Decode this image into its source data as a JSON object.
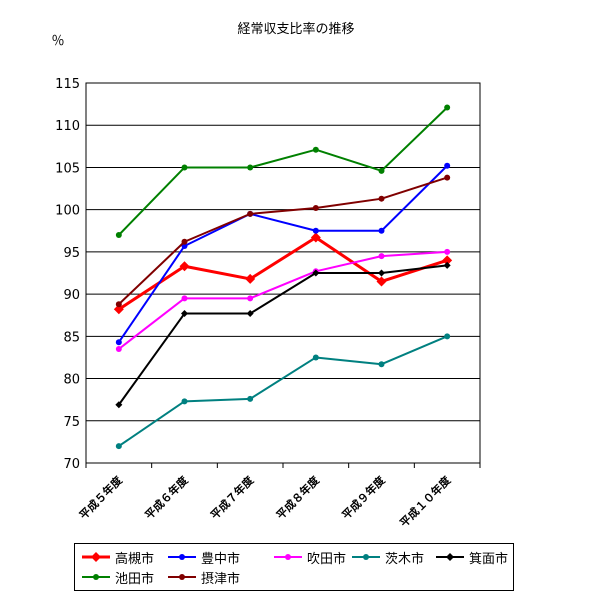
{
  "chart_data": {
    "type": "line",
    "title": "経常収支比率の推移",
    "ylabel": "％",
    "xlabel": "",
    "categories": [
      "平成５年度",
      "平成６年度",
      "平成７年度",
      "平成８年度",
      "平成９年度",
      "平成１０年度"
    ],
    "ylim": [
      70,
      115
    ],
    "yticks": [
      70,
      75,
      80,
      85,
      90,
      95,
      100,
      105,
      110,
      115
    ],
    "grid": true,
    "legend_position": "bottom",
    "series": [
      {
        "name": "高槻市",
        "color": "#ff0000",
        "marker": "diamond",
        "values": [
          88.2,
          93.3,
          91.8,
          96.7,
          91.5,
          94.0
        ]
      },
      {
        "name": "豊中市",
        "color": "#0000ff",
        "marker": "circle",
        "values": [
          84.3,
          95.7,
          99.5,
          97.5,
          97.5,
          105.2
        ]
      },
      {
        "name": "吹田市",
        "color": "#ff00ff",
        "marker": "circle",
        "values": [
          83.5,
          89.5,
          89.5,
          92.7,
          94.5,
          95.0
        ]
      },
      {
        "name": "茨木市",
        "color": "#008080",
        "marker": "circle",
        "values": [
          72.0,
          77.3,
          77.6,
          82.5,
          81.7,
          85.0
        ]
      },
      {
        "name": "箕面市",
        "color": "#000000",
        "marker": "diamond",
        "values": [
          76.9,
          87.7,
          87.7,
          92.5,
          92.5,
          93.4
        ]
      },
      {
        "name": "池田市",
        "color": "#008000",
        "marker": "circle",
        "values": [
          97.0,
          105.0,
          105.0,
          107.1,
          104.6,
          112.1
        ]
      },
      {
        "name": "摂津市",
        "color": "#800000",
        "marker": "circle",
        "values": [
          88.8,
          96.2,
          99.5,
          100.2,
          101.3,
          103.8
        ]
      }
    ]
  }
}
